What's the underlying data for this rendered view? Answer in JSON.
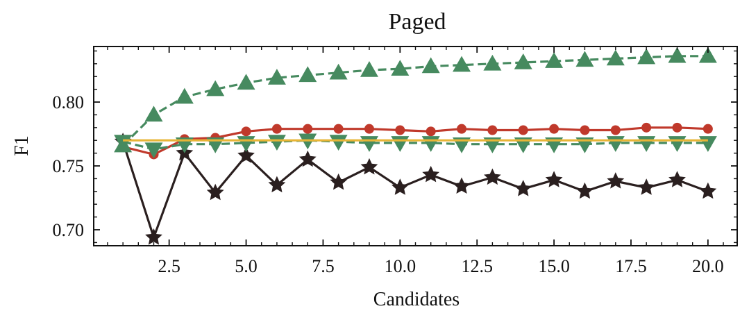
{
  "chart_data": {
    "type": "line",
    "title": "Paged",
    "xlabel": "Candidates",
    "ylabel": "F1",
    "xlim": [
      0.05,
      20.95
    ],
    "ylim": [
      0.6875,
      0.8435
    ],
    "x_ticks": [
      2.5,
      5.0,
      7.5,
      10.0,
      12.5,
      15.0,
      17.5,
      20.0
    ],
    "x_tick_labels": [
      "2.5",
      "5.0",
      "7.5",
      "10.0",
      "12.5",
      "15.0",
      "17.5",
      "20.0"
    ],
    "y_ticks": [
      0.7,
      0.75,
      0.8
    ],
    "y_tick_labels": [
      "0.70",
      "0.75",
      "0.80"
    ],
    "grid": false,
    "x": [
      1,
      2,
      3,
      4,
      5,
      6,
      7,
      8,
      9,
      10,
      11,
      12,
      13,
      14,
      15,
      16,
      17,
      18,
      19,
      20
    ],
    "series": [
      {
        "color": "#2a1f1f",
        "marker": "star",
        "dashed": false,
        "values": [
          0.769,
          0.694,
          0.76,
          0.729,
          0.758,
          0.735,
          0.755,
          0.737,
          0.749,
          0.733,
          0.743,
          0.734,
          0.741,
          0.732,
          0.739,
          0.73,
          0.738,
          0.733,
          0.739,
          0.73
        ]
      },
      {
        "color": "#c0392b",
        "marker": "circle",
        "dashed": false,
        "values": [
          0.765,
          0.759,
          0.771,
          0.772,
          0.777,
          0.779,
          0.779,
          0.779,
          0.779,
          0.778,
          0.777,
          0.779,
          0.778,
          0.778,
          0.779,
          0.778,
          0.778,
          0.78,
          0.78,
          0.779
        ]
      },
      {
        "color": "#468a5f",
        "marker": "triangle-up",
        "dashed": true,
        "values": [
          0.766,
          0.79,
          0.804,
          0.81,
          0.815,
          0.819,
          0.821,
          0.823,
          0.825,
          0.826,
          0.828,
          0.829,
          0.83,
          0.831,
          0.832,
          0.833,
          0.834,
          0.835,
          0.836,
          0.836
        ]
      },
      {
        "color": "#468a5f",
        "marker": "triangle-down",
        "dashed": true,
        "values": [
          0.769,
          0.763,
          0.767,
          0.767,
          0.768,
          0.769,
          0.77,
          0.769,
          0.768,
          0.768,
          0.768,
          0.767,
          0.767,
          0.767,
          0.767,
          0.767,
          0.768,
          0.768,
          0.768,
          0.768
        ]
      },
      {
        "color": "#e8b536",
        "marker": "none",
        "dashed": false,
        "values": [
          0.77,
          0.77,
          0.77,
          0.77,
          0.77,
          0.77,
          0.77,
          0.77,
          0.77,
          0.77,
          0.77,
          0.77,
          0.77,
          0.77,
          0.77,
          0.77,
          0.77,
          0.77,
          0.77,
          0.77
        ]
      }
    ]
  }
}
